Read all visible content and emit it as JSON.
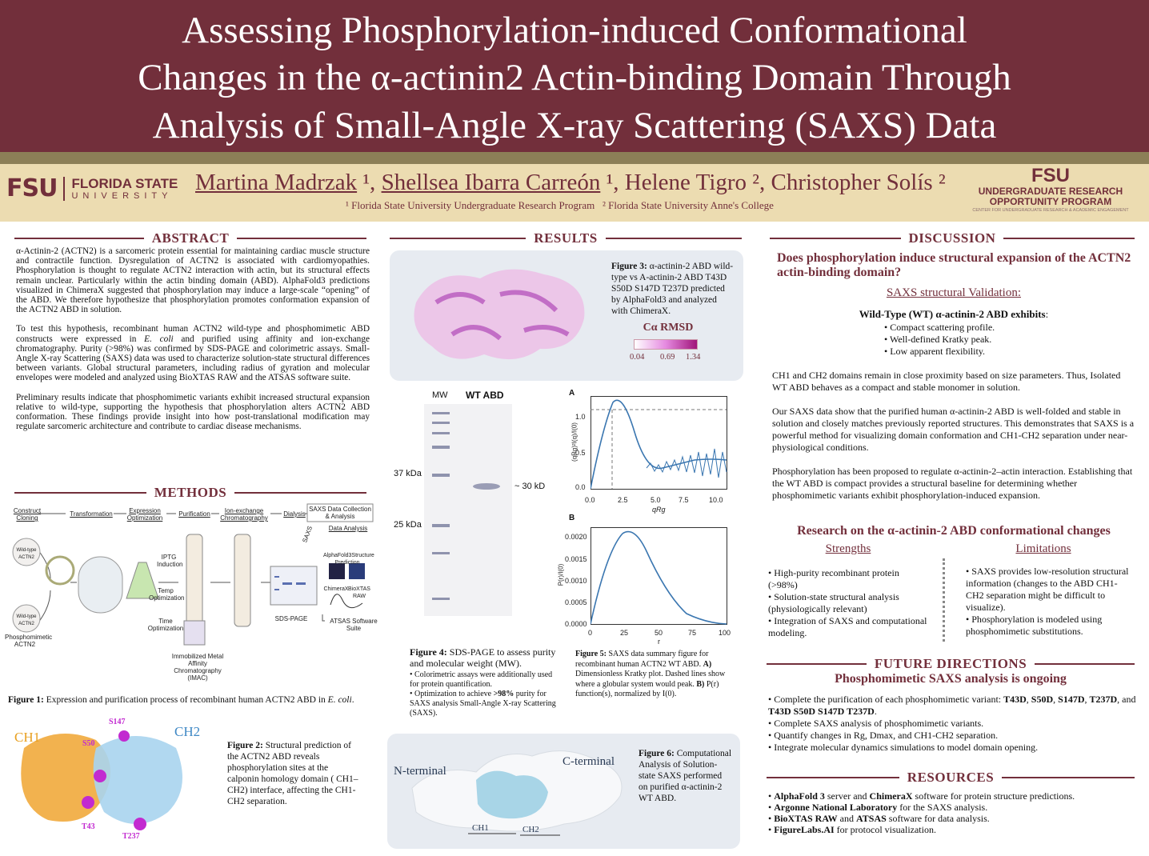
{
  "header": {
    "title_lines": [
      "Assessing Phosphorylation-induced Conformational",
      "Changes in the α-actinin2 Actin-binding Domain Through",
      "Analysis of Small-Angle X-ray Scattering (SAXS) Data"
    ],
    "authors": [
      {
        "name": "Martina Madrzak",
        "sup": " ¹, "
      },
      {
        "name": "Shellsea Ibarra Carreón",
        "sup": " ¹, "
      },
      {
        "name": "Helene Tigro",
        "sup": " ², "
      },
      {
        "name": "Christopher Solís",
        "sup": " ²"
      }
    ],
    "affiliations": [
      "¹ Florida State University Undergraduate Research Program",
      "² Florida State University Anne's College"
    ],
    "left_logo": {
      "mark": "FSU",
      "line1": "FLORIDA STATE",
      "line2": "UNIVERSITY"
    },
    "right_logo": {
      "mark": "FSU",
      "line1": "UNDERGRADUATE RESEARCH",
      "line2": "OPPORTUNITY PROGRAM",
      "line3": "CENTER FOR UNDERGRADUATE RESEARCH & ACADEMIC ENGAGEMENT"
    }
  },
  "abstract": {
    "heading": "ABSTRACT",
    "paragraphs": [
      "α-Actinin-2 (ACTN2) is a sarcomeric protein essential for maintaining cardiac muscle structure and contractile function. Dysregulation of ACTN2 is associated with cardiomyopathies. Phosphorylation is thought to regulate ACTN2 interaction with actin, but its structural effects remain unclear. Particularly within the actin binding domain (ABD). AlphaFold3 predictions visualized in ChimeraX suggested that phosphorylation may induce a large-scale “opening” of the ABD. We therefore hypothesize that phosphorylation promotes conformation expansion of the ACTN2 ABD in solution.",
      [
        "To test this hypothesis, recombinant human ACTN2 wild-type and phosphomimetic ABD constructs were expressed in ",
        "E. coli",
        " and purified using affinity and ion-exchange chromatography. Purity (>98%) was confirmed by SDS-PAGE and colorimetric assays. Small-Angle X-ray Scattering (SAXS) data was used to characterize solution-state structural differences between variants. Global structural parameters, including radius of gyration and molecular envelopes were modeled and analyzed using BioXTAS RAW and the ATSAS software suite."
      ],
      "Preliminary results indicate that phosphomimetic variants exhibit increased structural expansion relative to wild-type, supporting the hypothesis that phosphorylation alters ACTN2 ABD conformation. These findings provide insight into how post-translational modification may regulate sarcomeric architecture and contribute to cardiac disease mechanisms."
    ]
  },
  "methods": {
    "heading": "METHODS",
    "steps": [
      "Construct Cloning",
      "Transformation",
      "Expression Optimization",
      "Purification",
      "Ion-exchange Chromatography",
      "Dialysis",
      "SAXS Data Collection & Analysis"
    ],
    "labels": {
      "wild_type": "Wild-type ACTN2",
      "phospho": "Phosphomimetic ACTN2",
      "iptg": "IPTG Induction",
      "temp": "Temp Optimization",
      "time": "Time Optimization",
      "imac": "Immobilized Metal Affinity Chromatography (IMAC)",
      "sds": "SDS-PAGE",
      "data_analysis": "Data Analysis",
      "saxs": "SAXS",
      "alphafold": "AlphaFold3Structure Prediction",
      "chimerax": "ChimeraX",
      "bioxtas": "BioXTAS RAW",
      "atsas": "ATSAS Software Suite"
    },
    "figure1": [
      "Figure 1:",
      " Expression and purification process of recombinant human ACTN2 ABD in ",
      "E. coli",
      "."
    ],
    "figure2_labels": {
      "ch1": "CH1",
      "ch2": "CH2",
      "s147": "S147",
      "s50": "S50",
      "t43": "T43",
      "t237": "T237"
    },
    "figure2": [
      "Figure 2:",
      " Structural prediction of the ACTN2 ABD reveals phosphorylation sites at the calponin homology domain ( CH1–CH2) interface, affecting the CH1-CH2 separation."
    ]
  },
  "results": {
    "heading": "RESULTS",
    "figure3": [
      "Figure 3:",
      " α-actinin-2 ABD wild-type vs A-actinin-2 ABD T43D S50D S147D T237D predicted by AlphaFold3 and analyzed with ChimeraX."
    ],
    "rmsd": {
      "title": "Cα RMSD",
      "ticks": [
        "0.04",
        "0.69",
        "1.34"
      ]
    },
    "gel": {
      "mw": "MW",
      "lane": "WT ABD",
      "marker1": "37 kDa",
      "marker2": "25 kDa",
      "band": "~ 30 kD"
    },
    "figure4": {
      "caption": [
        "Figure 4:",
        " SDS-PAGE to assess purity and molecular weight (MW)."
      ],
      "bullets": [
        [
          "• Colorimetric assays were additionally used for protein quantification."
        ],
        [
          "• Optimization to achieve ",
          ">98%",
          " purity for SAXS analysis Small-Angle X-ray Scattering (SAXS)."
        ]
      ]
    },
    "plot_a": {
      "panel": "A",
      "xticks": [
        "0.0",
        "2.5",
        "5.0",
        "7.5",
        "10.0"
      ],
      "yticks": [
        "0.0",
        "0.5",
        "1.0"
      ],
      "xlabel": "qRg",
      "ylabel": "(qRg)²I(q)/I(0)"
    },
    "plot_b": {
      "panel": "B",
      "xticks": [
        "0",
        "25",
        "50",
        "75",
        "100"
      ],
      "yticks": [
        "0.0000",
        "0.0005",
        "0.0010",
        "0.0015",
        "0.0020"
      ],
      "xlabel": "r",
      "ylabel": "P(r)/I(0)"
    },
    "figure5": [
      "Figure 5:",
      " SAXS data summary figure for recombinant human ACTN2 WT ABD. ",
      "A)",
      " Dimensionless Kratky plot. Dashed lines show where a globular system would peak. ",
      "B)",
      " P(r) function(s), normalized by I(0)."
    ],
    "figure6_labels": {
      "n": "N-terminal",
      "c": "C-terminal",
      "ch1": "CH1",
      "ch2": "CH2"
    },
    "figure6": [
      "Figure 6:",
      " Computational Analysis of Solution-state SAXS performed on purified α-actinin-2 WT ABD."
    ]
  },
  "discussion": {
    "heading": "DISCUSSION",
    "question": "Does phosphorylation induce structural expansion of the ACTN2 actin-binding domain?",
    "validation": "SAXS structural Validation:",
    "wt": "Wild-Type (WT) α-actinin-2 ABD exhibits",
    "wt_colon": ":",
    "wt_bullets": [
      "• Compact scattering profile.",
      "• Well-defined Kratky peak.",
      "• Low apparent flexibility."
    ],
    "paragraphs": [
      "CH1 and CH2 domains remain in close proximity based on size parameters. Thus, Isolated WT ABD behaves as a compact and stable monomer in solution.",
      "Our SAXS data show that the purified human α-actinin-2 ABD is well-folded and stable in solution and closely matches previously reported structures. This demonstrates that SAXS is a powerful method for visualizing domain conformation and CH1-CH2 separation under near-physiological conditions.",
      "Phosphorylation has been proposed to regulate α-actinin-2–actin interaction. Establishing that the WT ABD is compact provides a structural baseline for determining whether phosphomimetic variants exhibit phosphorylation-induced expansion."
    ],
    "research_heading": "Research on the α-actinin-2 ABD conformational changes",
    "strengths": {
      "title": "Strengths",
      "items": [
        "• High-purity recombinant protein (>98%)",
        "• Solution-state structural analysis (physiologically relevant)",
        "• Integration of SAXS and computational modeling."
      ]
    },
    "limitations": {
      "title": "Limitations",
      "items": [
        "• SAXS provides low-resolution structural information (changes to the ABD CH1-CH2 separation might be difficult to visualize).",
        "• Phosphorylation is modeled using phosphomimetic substitutions."
      ]
    }
  },
  "future": {
    "heading": "FUTURE DIRECTIONS",
    "subheading": "Phosphomimetic SAXS analysis is ongoing",
    "bullets": [
      [
        "• Complete the purification of each phosphomimetic variant: ",
        "T43D",
        ", ",
        "S50D",
        ", ",
        "S147D",
        ", ",
        "T237D",
        ", and ",
        "T43D S50D S147D T237D",
        "."
      ],
      [
        "• Complete SAXS analysis of phosphomimetic variants."
      ],
      [
        "• Quantify changes in Rg, Dmax, and CH1-CH2 separation."
      ],
      [
        "• Integrate molecular dynamics simulations to model domain opening."
      ]
    ]
  },
  "resources": {
    "heading": "RESOURCES",
    "items": [
      [
        "• ",
        "AlphaFold 3",
        " server and ",
        "ChimeraX",
        " software for protein structure predictions."
      ],
      [
        "• ",
        "Argonne National Laboratory",
        " for the SAXS analysis."
      ],
      [
        "• ",
        "BioXTAS RAW",
        " and ",
        "ATSAS",
        " software for data analysis."
      ],
      [
        "• ",
        "FigureLabs.AI",
        " for protocol visualization."
      ]
    ]
  }
}
